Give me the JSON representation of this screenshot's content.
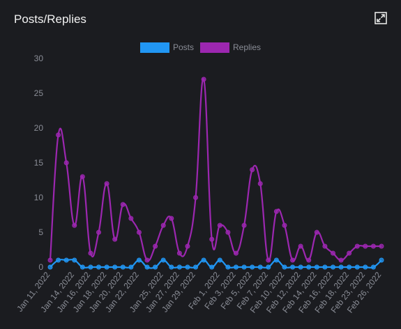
{
  "panel": {
    "title": "Posts/Replies",
    "expand_icon": "expand-icon"
  },
  "chart_data": {
    "type": "line",
    "title": "Posts/Replies",
    "xlabel": "",
    "ylabel": "",
    "ylim": [
      0,
      30
    ],
    "yticks": [
      0,
      5,
      10,
      15,
      20,
      25,
      30
    ],
    "grid": false,
    "legend": "top-center",
    "x": [
      "Jan 11, 2022",
      "Jan 12, 2022",
      "Jan 13, 2022",
      "Jan 14, 2022",
      "Jan 15, 2022",
      "Jan 16, 2022",
      "Jan 17, 2022",
      "Jan 18, 2022",
      "Jan 19, 2022",
      "Jan 20, 2022",
      "Jan 21, 2022",
      "Jan 22, 2022",
      "Jan 23, 2022",
      "Jan 24, 2022",
      "Jan 25, 2022",
      "Jan 26, 2022",
      "Jan 27, 2022",
      "Jan 28, 2022",
      "Jan 29, 2022",
      "Jan 30, 2022",
      "Jan 31, 2022",
      "Feb 1, 2022",
      "Feb 2, 2022",
      "Feb 3, 2022",
      "Feb 4, 2022",
      "Feb 5, 2022",
      "Feb 6, 2022",
      "Feb 7, 2022",
      "Feb 8, 2022",
      "Feb 10, 2022",
      "Feb 11, 2022",
      "Feb 12, 2022",
      "Feb 13, 2022",
      "Feb 14, 2022",
      "Feb 15, 2022",
      "Feb 16, 2022",
      "Feb 17, 2022",
      "Feb 18, 2022",
      "Feb 20, 2022",
      "Feb 23, 2022",
      "Feb 24, 2022",
      "Feb 26, 2022"
    ],
    "xtick_labels": [
      "Jan 11, 2022",
      "Jan 14, 2022",
      "Jan 16, 2022",
      "Jan 18, 2022",
      "Jan 20, 2022",
      "Jan 22, 2022",
      "Jan 25, 2022",
      "Jan 27, 2022",
      "Jan 29, 2022",
      "Feb 1, 2022",
      "Feb 3, 2022",
      "Feb 5, 2022",
      "Feb 7, 2022",
      "Feb 10, 2022",
      "Feb 12, 2022",
      "Feb 14, 2022",
      "Feb 16, 2022",
      "Feb 18, 2022",
      "Feb 23, 2022",
      "Feb 26, 2022"
    ],
    "series": [
      {
        "name": "Posts",
        "color": "#2196f3",
        "values": [
          0,
          1,
          1,
          1,
          0,
          0,
          0,
          0,
          0,
          0,
          0,
          1,
          0,
          0,
          1,
          0,
          0,
          0,
          0,
          1,
          0,
          1,
          0,
          0,
          0,
          0,
          0,
          0,
          1,
          0,
          0,
          0,
          0,
          0,
          0,
          0,
          0,
          0,
          0,
          0,
          0,
          1
        ]
      },
      {
        "name": "Replies",
        "color": "#9c27b0",
        "values": [
          1,
          19,
          15,
          6,
          13,
          2,
          5,
          12,
          4,
          9,
          7,
          5,
          1,
          3,
          6,
          7,
          2,
          3,
          10,
          27,
          4,
          6,
          5,
          2,
          6,
          14,
          12,
          1,
          8,
          6,
          1,
          3,
          1,
          5,
          3,
          2,
          1,
          2,
          3,
          3,
          3,
          3
        ]
      }
    ]
  }
}
